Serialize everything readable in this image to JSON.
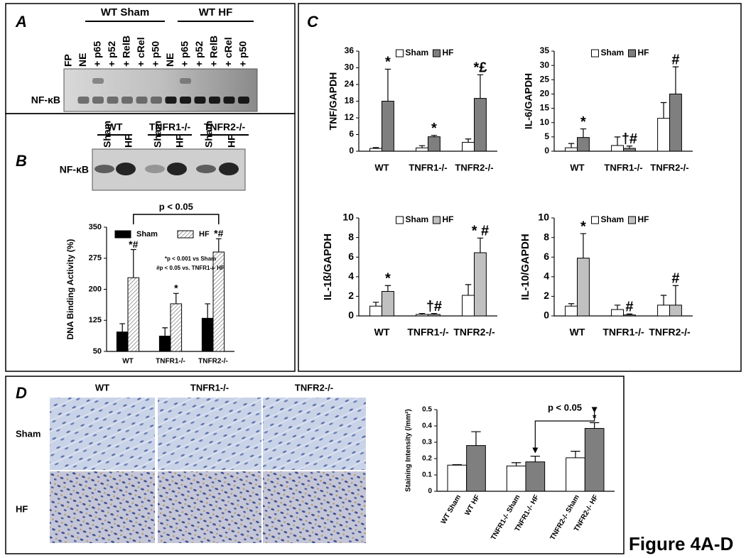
{
  "figure_label": "Figure 4A-D",
  "panel_a": {
    "letter": "A",
    "groups": [
      "WT Sham",
      "WT HF"
    ],
    "lanes": [
      "FP",
      "NE",
      "+ p65",
      "+ p52",
      "+ RelB",
      "+ cRel",
      "+ p50",
      "NE",
      "+ p65",
      "+ p52",
      "+ RelB",
      "+ cRel",
      "+ p50"
    ],
    "band_label": "NF-κB"
  },
  "panel_b": {
    "letter": "B",
    "groups": [
      "WT",
      "TNFR1-/-",
      "TNFR2-/-"
    ],
    "lanes": [
      "Sham",
      "HF",
      "Sham",
      "HF",
      "Sham",
      "HF"
    ],
    "band_label": "NF-κB"
  },
  "panel_c": {
    "letter": "C"
  },
  "panel_d": {
    "letter": "D",
    "columns": [
      "WT",
      "TNFR1-/-",
      "TNFR2-/-"
    ],
    "rows": [
      "Sham",
      "HF"
    ]
  },
  "chart_data": [
    {
      "type": "bar",
      "y_label": "DNA Binding Activity (%)",
      "categories": [
        "WT",
        "TNFR1-/-",
        "TNFR2-/-"
      ],
      "series": [
        {
          "name": "Sham",
          "color": "#000000",
          "values": [
            97,
            87,
            130
          ],
          "errors": [
            20,
            20,
            35
          ]
        },
        {
          "name": "HF",
          "color": "#ffffff",
          "hatch": true,
          "values": [
            228,
            165,
            290
          ],
          "errors": [
            68,
            25,
            32
          ],
          "marks": [
            "*#",
            "*",
            "*#"
          ]
        }
      ],
      "ylim": [
        50,
        350
      ],
      "yticks": [
        50,
        125,
        200,
        275,
        350
      ],
      "bracket_label": "p < 0.05",
      "notes": [
        "*p < 0.001 vs Sham",
        "#p < 0.05 vs. TNFR1-/- HF"
      ]
    },
    {
      "type": "bar",
      "y_label": "TNF/GAPDH",
      "categories": [
        "WT",
        "TNFR1-/-",
        "TNFR2-/-"
      ],
      "series": [
        {
          "name": "Sham",
          "color": "#ffffff",
          "values": [
            1,
            1.2,
            3.2
          ],
          "errors": [
            0.3,
            0.8,
            1.2
          ]
        },
        {
          "name": "HF",
          "color": "#7f7f7f",
          "values": [
            18,
            5.2,
            19
          ],
          "errors": [
            11.5,
            0.5,
            8.5
          ],
          "marks": [
            "*",
            "*",
            "*£"
          ]
        }
      ],
      "ylim": [
        0,
        36
      ],
      "yticks": [
        0,
        6,
        12,
        18,
        24,
        30,
        36
      ]
    },
    {
      "type": "bar",
      "y_label": "IL-6/GAPDH",
      "categories": [
        "WT",
        "TNFR1-/-",
        "TNFR2-/-"
      ],
      "series": [
        {
          "name": "Sham",
          "color": "#ffffff",
          "values": [
            1.2,
            2,
            11.5
          ],
          "errors": [
            1.5,
            3,
            5.5
          ]
        },
        {
          "name": "HF",
          "color": "#7f7f7f",
          "values": [
            4.8,
            1,
            20
          ],
          "errors": [
            3,
            0.8,
            9.5
          ],
          "marks": [
            "*",
            "†#",
            "#"
          ]
        }
      ],
      "ylim": [
        0,
        35
      ],
      "yticks": [
        0,
        5,
        10,
        15,
        20,
        25,
        30,
        35
      ]
    },
    {
      "type": "bar",
      "y_label": "IL-1ß/GAPDH",
      "categories": [
        "WT",
        "TNFR1-/-",
        "TNFR2-/-"
      ],
      "series": [
        {
          "name": "Sham",
          "color": "#ffffff",
          "values": [
            1,
            0.15,
            2.1
          ],
          "errors": [
            0.4,
            0.1,
            1.1
          ]
        },
        {
          "name": "HF",
          "color": "#c0c0c0",
          "values": [
            2.5,
            0.15,
            6.45
          ],
          "errors": [
            0.6,
            0.1,
            1.5
          ],
          "marks": [
            "*",
            "†#",
            "* #"
          ]
        }
      ],
      "ylim": [
        0,
        10
      ],
      "yticks": [
        0,
        2,
        4,
        6,
        8,
        10
      ]
    },
    {
      "type": "bar",
      "y_label": "IL-10/GAPDH",
      "categories": [
        "WT",
        "TNFR1-/-",
        "TNFR2-/-"
      ],
      "series": [
        {
          "name": "Sham",
          "color": "#ffffff",
          "values": [
            1,
            0.65,
            1.1
          ],
          "errors": [
            0.25,
            0.45,
            1
          ]
        },
        {
          "name": "HF",
          "color": "#c0c0c0",
          "values": [
            5.9,
            0.1,
            1.1
          ],
          "errors": [
            2.5,
            0.1,
            2
          ],
          "marks": [
            "*",
            "#",
            "#"
          ]
        }
      ],
      "ylim": [
        0,
        10
      ],
      "yticks": [
        0,
        2,
        4,
        6,
        8,
        10
      ]
    },
    {
      "type": "bar",
      "y_label": "Staining Intensity (/mm²)",
      "categories": [
        "WT Sham",
        "WT HF",
        "TNFR1-/- Sham",
        "TNFR1-/- HF",
        "TNFR2-/- Sham",
        "TNFR2-/- HF"
      ],
      "values": [
        0.16,
        0.28,
        0.155,
        0.18,
        0.205,
        0.385
      ],
      "errors": [
        0.003,
        0.085,
        0.02,
        0.035,
        0.04,
        0.035
      ],
      "colors": [
        "#ffffff",
        "#7f7f7f",
        "#ffffff",
        "#7f7f7f",
        "#ffffff",
        "#7f7f7f"
      ],
      "marks": [
        null,
        null,
        null,
        null,
        null,
        "*"
      ],
      "ylim": [
        0,
        0.5
      ],
      "yticks": [
        0,
        0.1,
        0.2,
        0.3,
        0.4,
        0.5
      ],
      "bracket_label": "p < 0.05"
    }
  ]
}
